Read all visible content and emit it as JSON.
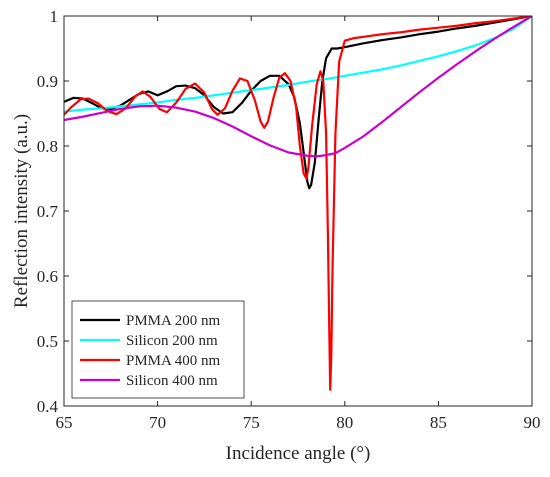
{
  "chart_data": {
    "type": "line",
    "xlabel": "Incidence angle (°)",
    "ylabel": "Reflection intensity (a.u.)",
    "xlim": [
      65,
      90
    ],
    "ylim": [
      0.4,
      1.0
    ],
    "xticks": [
      65,
      70,
      75,
      80,
      85,
      90
    ],
    "yticks": [
      0.4,
      0.5,
      0.6,
      0.7,
      0.8,
      0.9,
      1.0
    ],
    "xtick_labels": [
      "65",
      "70",
      "75",
      "80",
      "85",
      "90"
    ],
    "ytick_labels": [
      "0.4",
      "0.5",
      "0.6",
      "0.7",
      "0.8",
      "0.9",
      "1"
    ],
    "grid": false,
    "legend_position": "bottom-left",
    "series": [
      {
        "name": "PMMA 200 nm",
        "color": "#000000",
        "points": [
          [
            65.0,
            0.868
          ],
          [
            65.5,
            0.874
          ],
          [
            66.0,
            0.873
          ],
          [
            66.5,
            0.866
          ],
          [
            67.0,
            0.858
          ],
          [
            67.5,
            0.857
          ],
          [
            68.0,
            0.862
          ],
          [
            68.5,
            0.871
          ],
          [
            69.0,
            0.88
          ],
          [
            69.5,
            0.884
          ],
          [
            70.0,
            0.878
          ],
          [
            70.5,
            0.884
          ],
          [
            71.0,
            0.892
          ],
          [
            71.5,
            0.893
          ],
          [
            72.0,
            0.889
          ],
          [
            72.5,
            0.878
          ],
          [
            73.0,
            0.86
          ],
          [
            73.5,
            0.85
          ],
          [
            74.0,
            0.852
          ],
          [
            74.5,
            0.866
          ],
          [
            75.0,
            0.885
          ],
          [
            75.5,
            0.9
          ],
          [
            76.0,
            0.908
          ],
          [
            76.5,
            0.908
          ],
          [
            77.0,
            0.895
          ],
          [
            77.3,
            0.875
          ],
          [
            77.6,
            0.835
          ],
          [
            77.8,
            0.79
          ],
          [
            78.0,
            0.745
          ],
          [
            78.1,
            0.735
          ],
          [
            78.2,
            0.74
          ],
          [
            78.4,
            0.775
          ],
          [
            78.6,
            0.84
          ],
          [
            78.8,
            0.9
          ],
          [
            79.0,
            0.935
          ],
          [
            79.3,
            0.95
          ],
          [
            79.6,
            0.95
          ],
          [
            80.0,
            0.952
          ],
          [
            81.0,
            0.958
          ],
          [
            82.0,
            0.963
          ],
          [
            83.0,
            0.967
          ],
          [
            84.0,
            0.972
          ],
          [
            85.0,
            0.976
          ],
          [
            86.0,
            0.981
          ],
          [
            87.0,
            0.985
          ],
          [
            88.0,
            0.99
          ],
          [
            89.0,
            0.995
          ],
          [
            90.0,
            1.0
          ]
        ]
      },
      {
        "name": "Silicon 200 nm",
        "color": "#00ffff",
        "points": [
          [
            65.0,
            0.853
          ],
          [
            66.0,
            0.856
          ],
          [
            67.0,
            0.858
          ],
          [
            68.0,
            0.861
          ],
          [
            69.0,
            0.864
          ],
          [
            70.0,
            0.867
          ],
          [
            71.0,
            0.871
          ],
          [
            72.0,
            0.874
          ],
          [
            73.0,
            0.878
          ],
          [
            74.0,
            0.882
          ],
          [
            75.0,
            0.886
          ],
          [
            76.0,
            0.89
          ],
          [
            77.0,
            0.894
          ],
          [
            78.0,
            0.899
          ],
          [
            79.0,
            0.903
          ],
          [
            80.0,
            0.908
          ],
          [
            81.0,
            0.913
          ],
          [
            82.0,
            0.918
          ],
          [
            83.0,
            0.924
          ],
          [
            84.0,
            0.931
          ],
          [
            85.0,
            0.938
          ],
          [
            86.0,
            0.946
          ],
          [
            87.0,
            0.955
          ],
          [
            88.0,
            0.966
          ],
          [
            89.0,
            0.98
          ],
          [
            90.0,
            1.0
          ]
        ]
      },
      {
        "name": "PMMA 400 nm",
        "color": "#ff0000",
        "points": [
          [
            65.0,
            0.848
          ],
          [
            65.4,
            0.86
          ],
          [
            65.9,
            0.872
          ],
          [
            66.3,
            0.873
          ],
          [
            66.8,
            0.866
          ],
          [
            67.3,
            0.854
          ],
          [
            67.8,
            0.849
          ],
          [
            68.3,
            0.858
          ],
          [
            68.8,
            0.876
          ],
          [
            69.2,
            0.884
          ],
          [
            69.6,
            0.876
          ],
          [
            70.1,
            0.857
          ],
          [
            70.5,
            0.852
          ],
          [
            71.0,
            0.867
          ],
          [
            71.5,
            0.888
          ],
          [
            72.0,
            0.896
          ],
          [
            72.5,
            0.882
          ],
          [
            72.9,
            0.857
          ],
          [
            73.2,
            0.848
          ],
          [
            73.6,
            0.858
          ],
          [
            74.0,
            0.885
          ],
          [
            74.4,
            0.904
          ],
          [
            74.8,
            0.9
          ],
          [
            75.2,
            0.87
          ],
          [
            75.5,
            0.838
          ],
          [
            75.7,
            0.828
          ],
          [
            75.9,
            0.838
          ],
          [
            76.2,
            0.875
          ],
          [
            76.5,
            0.905
          ],
          [
            76.8,
            0.912
          ],
          [
            77.1,
            0.9
          ],
          [
            77.4,
            0.86
          ],
          [
            77.6,
            0.8
          ],
          [
            77.8,
            0.758
          ],
          [
            77.95,
            0.75
          ],
          [
            78.05,
            0.765
          ],
          [
            78.25,
            0.83
          ],
          [
            78.5,
            0.895
          ],
          [
            78.7,
            0.915
          ],
          [
            78.85,
            0.9
          ],
          [
            79.0,
            0.82
          ],
          [
            79.1,
            0.66
          ],
          [
            79.18,
            0.5
          ],
          [
            79.22,
            0.425
          ],
          [
            79.28,
            0.48
          ],
          [
            79.35,
            0.62
          ],
          [
            79.5,
            0.82
          ],
          [
            79.7,
            0.93
          ],
          [
            80.0,
            0.962
          ],
          [
            80.5,
            0.966
          ],
          [
            81.0,
            0.968
          ],
          [
            82.0,
            0.972
          ],
          [
            83.0,
            0.975
          ],
          [
            84.0,
            0.979
          ],
          [
            85.0,
            0.982
          ],
          [
            86.0,
            0.985
          ],
          [
            87.0,
            0.989
          ],
          [
            88.0,
            0.992
          ],
          [
            89.0,
            0.996
          ],
          [
            90.0,
            1.0
          ]
        ]
      },
      {
        "name": "Silicon 400 nm",
        "color": "#cc00cc",
        "points": [
          [
            65.0,
            0.84
          ],
          [
            66.0,
            0.845
          ],
          [
            67.0,
            0.851
          ],
          [
            68.0,
            0.857
          ],
          [
            69.0,
            0.861
          ],
          [
            70.0,
            0.862
          ],
          [
            71.0,
            0.859
          ],
          [
            72.0,
            0.853
          ],
          [
            73.0,
            0.843
          ],
          [
            74.0,
            0.83
          ],
          [
            75.0,
            0.815
          ],
          [
            76.0,
            0.801
          ],
          [
            77.0,
            0.79
          ],
          [
            78.0,
            0.785
          ],
          [
            78.5,
            0.784
          ],
          [
            79.0,
            0.786
          ],
          [
            79.5,
            0.789
          ],
          [
            80.0,
            0.797
          ],
          [
            81.0,
            0.815
          ],
          [
            82.0,
            0.837
          ],
          [
            83.0,
            0.86
          ],
          [
            84.0,
            0.883
          ],
          [
            85.0,
            0.905
          ],
          [
            86.0,
            0.926
          ],
          [
            87.0,
            0.946
          ],
          [
            88.0,
            0.965
          ],
          [
            89.0,
            0.983
          ],
          [
            90.0,
            1.0
          ]
        ]
      }
    ]
  }
}
